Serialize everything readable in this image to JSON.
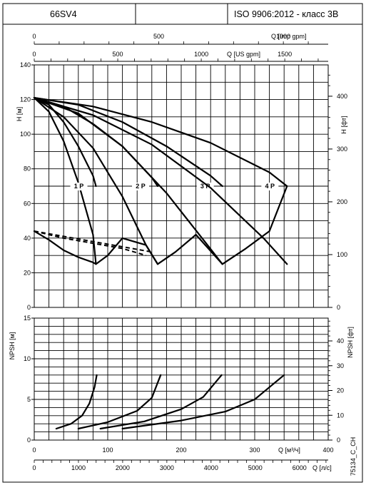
{
  "header": {
    "model": "66SV4",
    "middle": "",
    "standard": "ISO 9906:2012 - класс 3B"
  },
  "side_code": "75134_C_CH",
  "chart_data": [
    {
      "type": "line",
      "title": "",
      "xlabel": "Q [м³/ч]",
      "ylabel": "H [м]",
      "ylabel_right": "H [фт]",
      "xlim": [
        0,
        100
      ],
      "ylim": [
        0,
        140
      ],
      "y_ticks": [
        0,
        20,
        40,
        60,
        80,
        100,
        120,
        140
      ],
      "y_right_ticks": [
        0,
        100,
        200,
        300,
        400
      ],
      "top_axes": [
        {
          "label": "Q [Imp gpm]",
          "ticks": [
            0,
            500,
            1000
          ]
        },
        {
          "label": "Q [US gpm]",
          "ticks": [
            0,
            500,
            1000,
            1500
          ]
        }
      ],
      "series": [
        {
          "name": "1 P",
          "x": [
            0,
            5,
            10,
            15,
            20,
            21
          ],
          "y": [
            121,
            117,
            107,
            93,
            76,
            70
          ],
          "lower_x": [
            0,
            5,
            10,
            15,
            20,
            21
          ],
          "lower_y": [
            121,
            113,
            96,
            72,
            42,
            25
          ]
        },
        {
          "name": "2 P",
          "x": [
            0,
            10,
            20,
            30,
            40,
            42
          ],
          "y": [
            121,
            116,
            106,
            93,
            75,
            70
          ],
          "lower_x": [
            0,
            10,
            20,
            30,
            38,
            42
          ],
          "lower_y": [
            121,
            110,
            92,
            64,
            36,
            25
          ]
        },
        {
          "name": "3 P",
          "x": [
            0,
            15,
            30,
            45,
            60,
            64
          ],
          "y": [
            121,
            117,
            107,
            93,
            76,
            70
          ],
          "lower_x": [
            0,
            15,
            30,
            45,
            58,
            64
          ],
          "lower_y": [
            121,
            112,
            93,
            66,
            38,
            25
          ]
        },
        {
          "name": "4 P",
          "x": [
            0,
            20,
            40,
            60,
            80,
            86
          ],
          "y": [
            121,
            116,
            107,
            95,
            78,
            70
          ],
          "lower_x": [
            0,
            20,
            40,
            60,
            78,
            86
          ],
          "lower_y": [
            121,
            111,
            94,
            69,
            40,
            25
          ]
        }
      ],
      "efficiency_lines": [
        {
          "x": [
            0,
            5,
            10,
            15,
            20,
            21,
            25,
            30,
            38,
            42,
            48,
            55,
            64,
            72,
            80,
            86
          ],
          "y": [
            44,
            39,
            33,
            29,
            26,
            25,
            30,
            40,
            36,
            25,
            32,
            42,
            25,
            34,
            44,
            70
          ]
        }
      ],
      "dashed_lines": [
        {
          "x": [
            0,
            10,
            20,
            30,
            40
          ],
          "y": [
            44,
            41,
            38,
            35,
            32
          ]
        },
        {
          "x": [
            0,
            10,
            20,
            30,
            38
          ],
          "y": [
            44,
            40,
            37,
            34,
            30
          ]
        }
      ],
      "grid": true
    },
    {
      "type": "line",
      "title": "",
      "xlabel": "Q [м³/ч]",
      "ylabel": "NPSH [м]",
      "ylabel_right": "NPSH [фт]",
      "xlim": [
        0,
        400
      ],
      "ylim": [
        0,
        15
      ],
      "x_ticks": [
        0,
        100,
        200,
        300,
        400
      ],
      "y_ticks": [
        0,
        5,
        10,
        15
      ],
      "y_right_ticks": [
        0,
        10,
        20,
        30,
        40
      ],
      "bottom_axes": [
        {
          "label": "Q [л/с]",
          "ticks": [
            0,
            1000,
            2000,
            3000,
            4000,
            5000,
            6000
          ]
        }
      ],
      "series": [
        {
          "name": "1 P",
          "x": [
            30,
            50,
            65,
            75,
            82,
            85
          ],
          "y": [
            1.4,
            2.0,
            3.0,
            4.5,
            6.5,
            8.0
          ]
        },
        {
          "name": "2 P",
          "x": [
            60,
            100,
            140,
            160,
            172
          ],
          "y": [
            1.4,
            2.2,
            3.6,
            5.2,
            8.0
          ]
        },
        {
          "name": "3 P",
          "x": [
            90,
            150,
            200,
            230,
            255
          ],
          "y": [
            1.4,
            2.3,
            3.8,
            5.3,
            8.0
          ]
        },
        {
          "name": "4 P",
          "x": [
            120,
            200,
            260,
            300,
            340
          ],
          "y": [
            1.4,
            2.4,
            3.5,
            5.0,
            8.0
          ]
        }
      ],
      "grid": true
    }
  ]
}
